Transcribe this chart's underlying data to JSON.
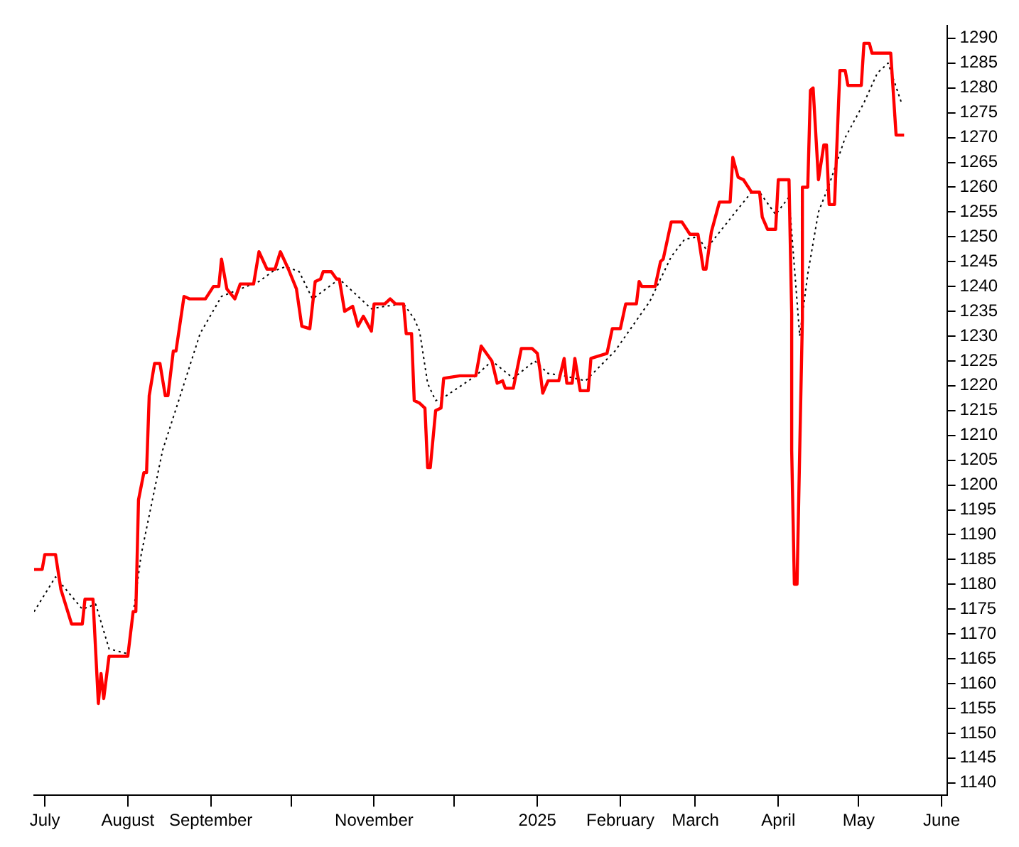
{
  "chart_data": {
    "type": "line",
    "marker": "none",
    "grid": false,
    "legend": false,
    "xlim": [
      "2024-06-27",
      "2025-06-03"
    ],
    "xticks": [
      {
        "value": "2024-07-01",
        "label": "July"
      },
      {
        "value": "2024-08-01",
        "label": "August"
      },
      {
        "value": "2024-09-01",
        "label": "September"
      },
      {
        "value": "2024-10-01",
        "label": null
      },
      {
        "value": "2024-11-01",
        "label": "November"
      },
      {
        "value": "2024-12-01",
        "label": null
      },
      {
        "value": "2025-01-01",
        "label": "2025"
      },
      {
        "value": "2025-02-01",
        "label": "February"
      },
      {
        "value": "2025-03-01",
        "label": "March"
      },
      {
        "value": "2025-04-01",
        "label": "April"
      },
      {
        "value": "2025-05-01",
        "label": "May"
      },
      {
        "value": "2025-06-01",
        "label": "June"
      }
    ],
    "ylim": [
      1137.5,
      1292.5
    ],
    "yticks": [
      1140,
      1145,
      1150,
      1155,
      1160,
      1165,
      1170,
      1175,
      1180,
      1185,
      1190,
      1195,
      1200,
      1205,
      1210,
      1215,
      1220,
      1225,
      1230,
      1235,
      1240,
      1245,
      1250,
      1255,
      1260,
      1265,
      1270,
      1275,
      1280,
      1285,
      1290
    ],
    "series": [
      {
        "color": "#ff0000",
        "line_style": "solid",
        "x": [
          "2024-06-27",
          "2024-06-30",
          "2024-07-01",
          "2024-07-05",
          "2024-07-07",
          "2024-07-11",
          "2024-07-15",
          "2024-07-16",
          "2024-07-19",
          "2024-07-21",
          "2024-07-22",
          "2024-07-23",
          "2024-07-25",
          "2024-08-01",
          "2024-08-03",
          "2024-08-04",
          "2024-08-05",
          "2024-08-07",
          "2024-08-08",
          "2024-08-09",
          "2024-08-11",
          "2024-08-13",
          "2024-08-15",
          "2024-08-16",
          "2024-08-18",
          "2024-08-19",
          "2024-08-22",
          "2024-08-24",
          "2024-08-30",
          "2024-09-02",
          "2024-09-04",
          "2024-09-05",
          "2024-09-07",
          "2024-09-10",
          "2024-09-12",
          "2024-09-17",
          "2024-09-19",
          "2024-09-22",
          "2024-09-25",
          "2024-09-27",
          "2024-09-30",
          "2024-10-03",
          "2024-10-05",
          "2024-10-08",
          "2024-10-10",
          "2024-10-12",
          "2024-10-13",
          "2024-10-16",
          "2024-10-18",
          "2024-10-19",
          "2024-10-21",
          "2024-10-24",
          "2024-10-26",
          "2024-10-28",
          "2024-10-31",
          "2024-11-01",
          "2024-11-05",
          "2024-11-07",
          "2024-11-09",
          "2024-11-12",
          "2024-11-13",
          "2024-11-15",
          "2024-11-16",
          "2024-11-18",
          "2024-11-20",
          "2024-11-21",
          "2024-11-22",
          "2024-11-24",
          "2024-11-26",
          "2024-11-27",
          "2024-12-03",
          "2024-12-09",
          "2024-12-11",
          "2024-12-15",
          "2024-12-17",
          "2024-12-19",
          "2024-12-20",
          "2024-12-23",
          "2024-12-26",
          "2024-12-30",
          "2025-01-01",
          "2025-01-02",
          "2025-01-03",
          "2025-01-05",
          "2025-01-09",
          "2025-01-11",
          "2025-01-12",
          "2025-01-14",
          "2025-01-15",
          "2025-01-17",
          "2025-01-20",
          "2025-01-21",
          "2025-01-27",
          "2025-01-29",
          "2025-02-01",
          "2025-02-03",
          "2025-02-07",
          "2025-02-08",
          "2025-02-09",
          "2025-02-14",
          "2025-02-16",
          "2025-02-17",
          "2025-02-20",
          "2025-02-24",
          "2025-02-27",
          "2025-03-02",
          "2025-03-04",
          "2025-03-05",
          "2025-03-07",
          "2025-03-10",
          "2025-03-14",
          "2025-03-15",
          "2025-03-17",
          "2025-03-19",
          "2025-03-22",
          "2025-03-25",
          "2025-03-26",
          "2025-03-28",
          "2025-03-31",
          "2025-04-01",
          "2025-04-05",
          "2025-04-06",
          "2025-04-06",
          "2025-04-07",
          "2025-04-08",
          "2025-04-09",
          "2025-04-10",
          "2025-04-10",
          "2025-04-12",
          "2025-04-13",
          "2025-04-14",
          "2025-04-16",
          "2025-04-18",
          "2025-04-19",
          "2025-04-20",
          "2025-04-22",
          "2025-04-24",
          "2025-04-26",
          "2025-04-27",
          "2025-05-02",
          "2025-05-03",
          "2025-05-05",
          "2025-05-06",
          "2025-05-13",
          "2025-05-15",
          "2025-05-18"
        ],
        "values": [
          1183,
          1183,
          1186,
          1186,
          1179,
          1172,
          1172,
          1177,
          1177,
          1156,
          1162,
          1157,
          1165.5,
          1165.5,
          1174.5,
          1174.5,
          1197,
          1202.5,
          1202.5,
          1218,
          1224.5,
          1224.5,
          1218,
          1218,
          1227,
          1227,
          1238,
          1237.5,
          1237.5,
          1240,
          1240,
          1245.5,
          1239.5,
          1237.5,
          1240.5,
          1240.5,
          1247,
          1243.5,
          1243.5,
          1247,
          1243.5,
          1239.5,
          1232,
          1231.5,
          1241,
          1241.5,
          1243,
          1243,
          1241.5,
          1241.5,
          1235,
          1236,
          1232,
          1234,
          1231,
          1236.5,
          1236.5,
          1237.5,
          1236.5,
          1236.5,
          1230.5,
          1230.5,
          1217,
          1216.5,
          1215.5,
          1203.5,
          1203.5,
          1215,
          1215.5,
          1221.5,
          1222,
          1222,
          1228,
          1225,
          1220.5,
          1221,
          1219.5,
          1219.5,
          1227.5,
          1227.5,
          1226.5,
          1223,
          1218.5,
          1221,
          1221,
          1225.5,
          1220.5,
          1220.5,
          1225.5,
          1219,
          1219,
          1225.5,
          1226.5,
          1231.5,
          1231.5,
          1236.5,
          1236.5,
          1241,
          1240,
          1240,
          1245,
          1245.5,
          1253,
          1253,
          1250.5,
          1250.5,
          1243.5,
          1243.5,
          1251,
          1257,
          1257,
          1266,
          1262,
          1261.5,
          1259,
          1259,
          1254,
          1251.5,
          1251.5,
          1261.5,
          1261.5,
          1234.5,
          1207,
          1180,
          1180,
          1207,
          1233.5,
          1260,
          1260,
          1279.5,
          1280,
          1261.5,
          1268.5,
          1268.5,
          1256.5,
          1256.5,
          1283.5,
          1283.5,
          1280.5,
          1280.5,
          1289,
          1289,
          1287,
          1287,
          1270.5,
          1270.5
        ]
      },
      {
        "color": "#000000",
        "line_style": "dotted",
        "x": [
          "2024-06-27",
          "2024-07-05",
          "2024-07-15",
          "2024-07-20",
          "2024-07-25",
          "2024-08-01",
          "2024-08-06",
          "2024-08-14",
          "2024-08-20",
          "2024-08-28",
          "2024-09-05",
          "2024-09-19",
          "2024-09-24",
          "2024-09-29",
          "2024-10-04",
          "2024-10-09",
          "2024-10-19",
          "2024-10-31",
          "2024-11-05",
          "2024-11-12",
          "2024-11-16",
          "2024-11-18",
          "2024-11-21",
          "2024-11-24",
          "2024-11-28",
          "2024-12-09",
          "2024-12-15",
          "2024-12-23",
          "2024-12-31",
          "2025-01-05",
          "2025-01-11",
          "2025-01-19",
          "2025-01-30",
          "2025-02-12",
          "2025-02-20",
          "2025-02-25",
          "2025-03-02",
          "2025-03-05",
          "2025-03-16",
          "2025-03-22",
          "2025-03-25",
          "2025-03-31",
          "2025-04-05",
          "2025-04-09",
          "2025-04-12",
          "2025-04-16",
          "2025-04-20",
          "2025-04-26",
          "2025-05-03",
          "2025-05-08",
          "2025-05-12",
          "2025-05-17"
        ],
        "values": [
          1174.5,
          1181.5,
          1175,
          1176,
          1167,
          1166,
          1186,
          1207,
          1217,
          1230.5,
          1238,
          1241,
          1243,
          1244,
          1243,
          1237.5,
          1241.5,
          1235.5,
          1236,
          1236.5,
          1233.5,
          1231,
          1220.5,
          1217,
          1218,
          1222,
          1225,
          1221.5,
          1225,
          1222.5,
          1222,
          1221,
          1227,
          1237,
          1246,
          1249.5,
          1250,
          1247.5,
          1255,
          1259,
          1259,
          1254.5,
          1258,
          1230,
          1242.5,
          1255,
          1260.5,
          1270,
          1277,
          1283,
          1285,
          1277
        ]
      }
    ]
  }
}
